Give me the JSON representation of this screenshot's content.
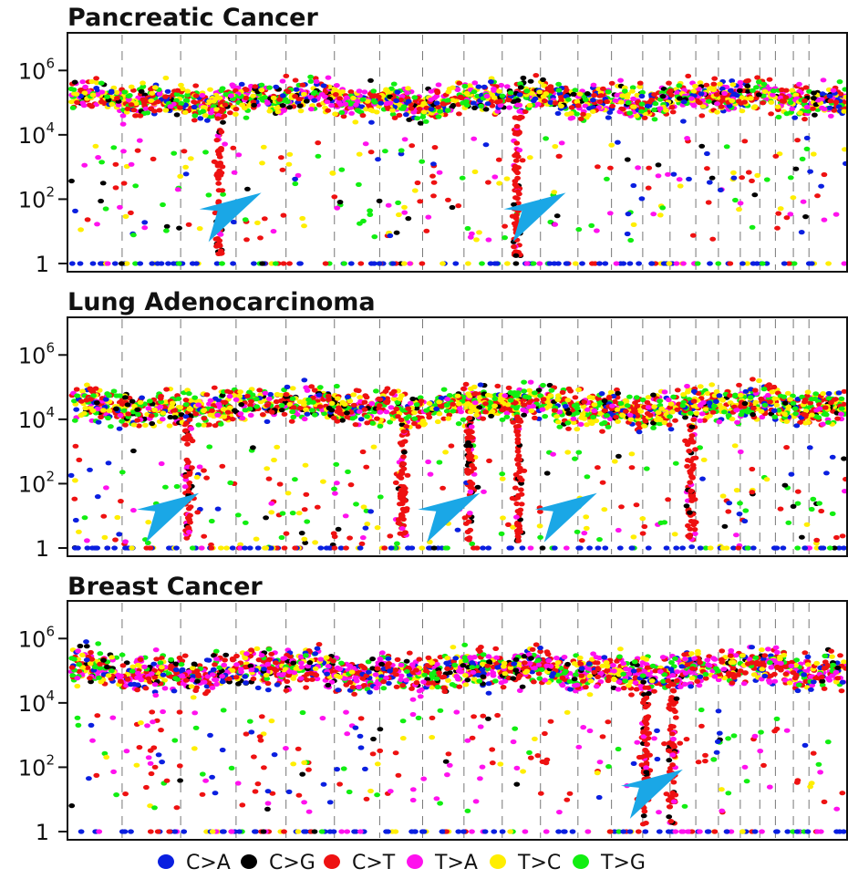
{
  "chart_data": [
    {
      "type": "scatter",
      "title": "Pancreatic Cancer",
      "yscale": "log",
      "ylim": [
        1,
        10000000
      ],
      "y_ticks": [
        {
          "value": 1,
          "base": "1",
          "exp": ""
        },
        {
          "value": 100,
          "base": "10",
          "exp": "2"
        },
        {
          "value": 10000,
          "base": "10",
          "exp": "4"
        },
        {
          "value": 1000000,
          "base": "10",
          "exp": "6"
        }
      ],
      "band": {
        "center_log": 5.1,
        "spread_log": 0.55
      },
      "dense_columns": [
        0.195,
        0.576
      ],
      "kataegis_arrows": [
        {
          "x": 0.19,
          "y": 56
        },
        {
          "x": 0.58,
          "y": 56
        }
      ],
      "chromosome_boundaries": [
        0.07,
        0.145,
        0.216,
        0.28,
        0.342,
        0.4,
        0.455,
        0.508,
        0.557,
        0.606,
        0.654,
        0.697,
        0.737,
        0.772,
        0.805,
        0.834,
        0.862,
        0.887,
        0.907,
        0.93,
        0.95
      ]
    },
    {
      "type": "scatter",
      "title": "Lung Adenocarcinoma",
      "yscale": "log",
      "ylim": [
        1,
        10000000
      ],
      "y_ticks": [
        {
          "value": 1,
          "base": "1",
          "exp": ""
        },
        {
          "value": 100,
          "base": "10",
          "exp": "2"
        },
        {
          "value": 10000,
          "base": "10",
          "exp": "4"
        },
        {
          "value": 1000000,
          "base": "10",
          "exp": "6"
        }
      ],
      "band": {
        "center_log": 4.4,
        "spread_log": 0.6
      },
      "dense_columns": [
        0.155,
        0.43,
        0.515,
        0.578,
        0.8
      ],
      "kataegis_arrows": [
        {
          "x": 0.11,
          "y": 18
        },
        {
          "x": 0.47,
          "y": 18
        },
        {
          "x": 0.62,
          "y": 18
        }
      ],
      "chromosome_boundaries": [
        0.07,
        0.145,
        0.216,
        0.28,
        0.342,
        0.4,
        0.455,
        0.508,
        0.557,
        0.606,
        0.654,
        0.697,
        0.737,
        0.772,
        0.805,
        0.834,
        0.862,
        0.887,
        0.907,
        0.93,
        0.95
      ]
    },
    {
      "type": "scatter",
      "title": "Breast Cancer",
      "yscale": "log",
      "ylim": [
        1,
        10000000
      ],
      "y_ticks": [
        {
          "value": 1,
          "base": "1",
          "exp": ""
        },
        {
          "value": 100,
          "base": "10",
          "exp": "2"
        },
        {
          "value": 10000,
          "base": "10",
          "exp": "4"
        },
        {
          "value": 1000000,
          "base": "10",
          "exp": "6"
        }
      ],
      "band": {
        "center_log": 5.0,
        "spread_log": 0.6
      },
      "dense_columns": [
        0.74,
        0.775
      ],
      "kataegis_arrows": [
        {
          "x": 0.73,
          "y": 30
        }
      ],
      "chromosome_boundaries": [
        0.07,
        0.145,
        0.216,
        0.28,
        0.342,
        0.4,
        0.455,
        0.508,
        0.557,
        0.606,
        0.654,
        0.697,
        0.737,
        0.772,
        0.805,
        0.834,
        0.862,
        0.887,
        0.907,
        0.93,
        0.95
      ]
    }
  ],
  "legend": [
    {
      "label": "C>A",
      "color": "#0a1fe0"
    },
    {
      "label": "C>G",
      "color": "#000000"
    },
    {
      "label": "C>T",
      "color": "#ee1111"
    },
    {
      "label": "T>A",
      "color": "#ff11ee"
    },
    {
      "label": "T>C",
      "color": "#ffee00"
    },
    {
      "label": "T>G",
      "color": "#11ee11"
    }
  ],
  "arrow_color": "#1aa7e6"
}
